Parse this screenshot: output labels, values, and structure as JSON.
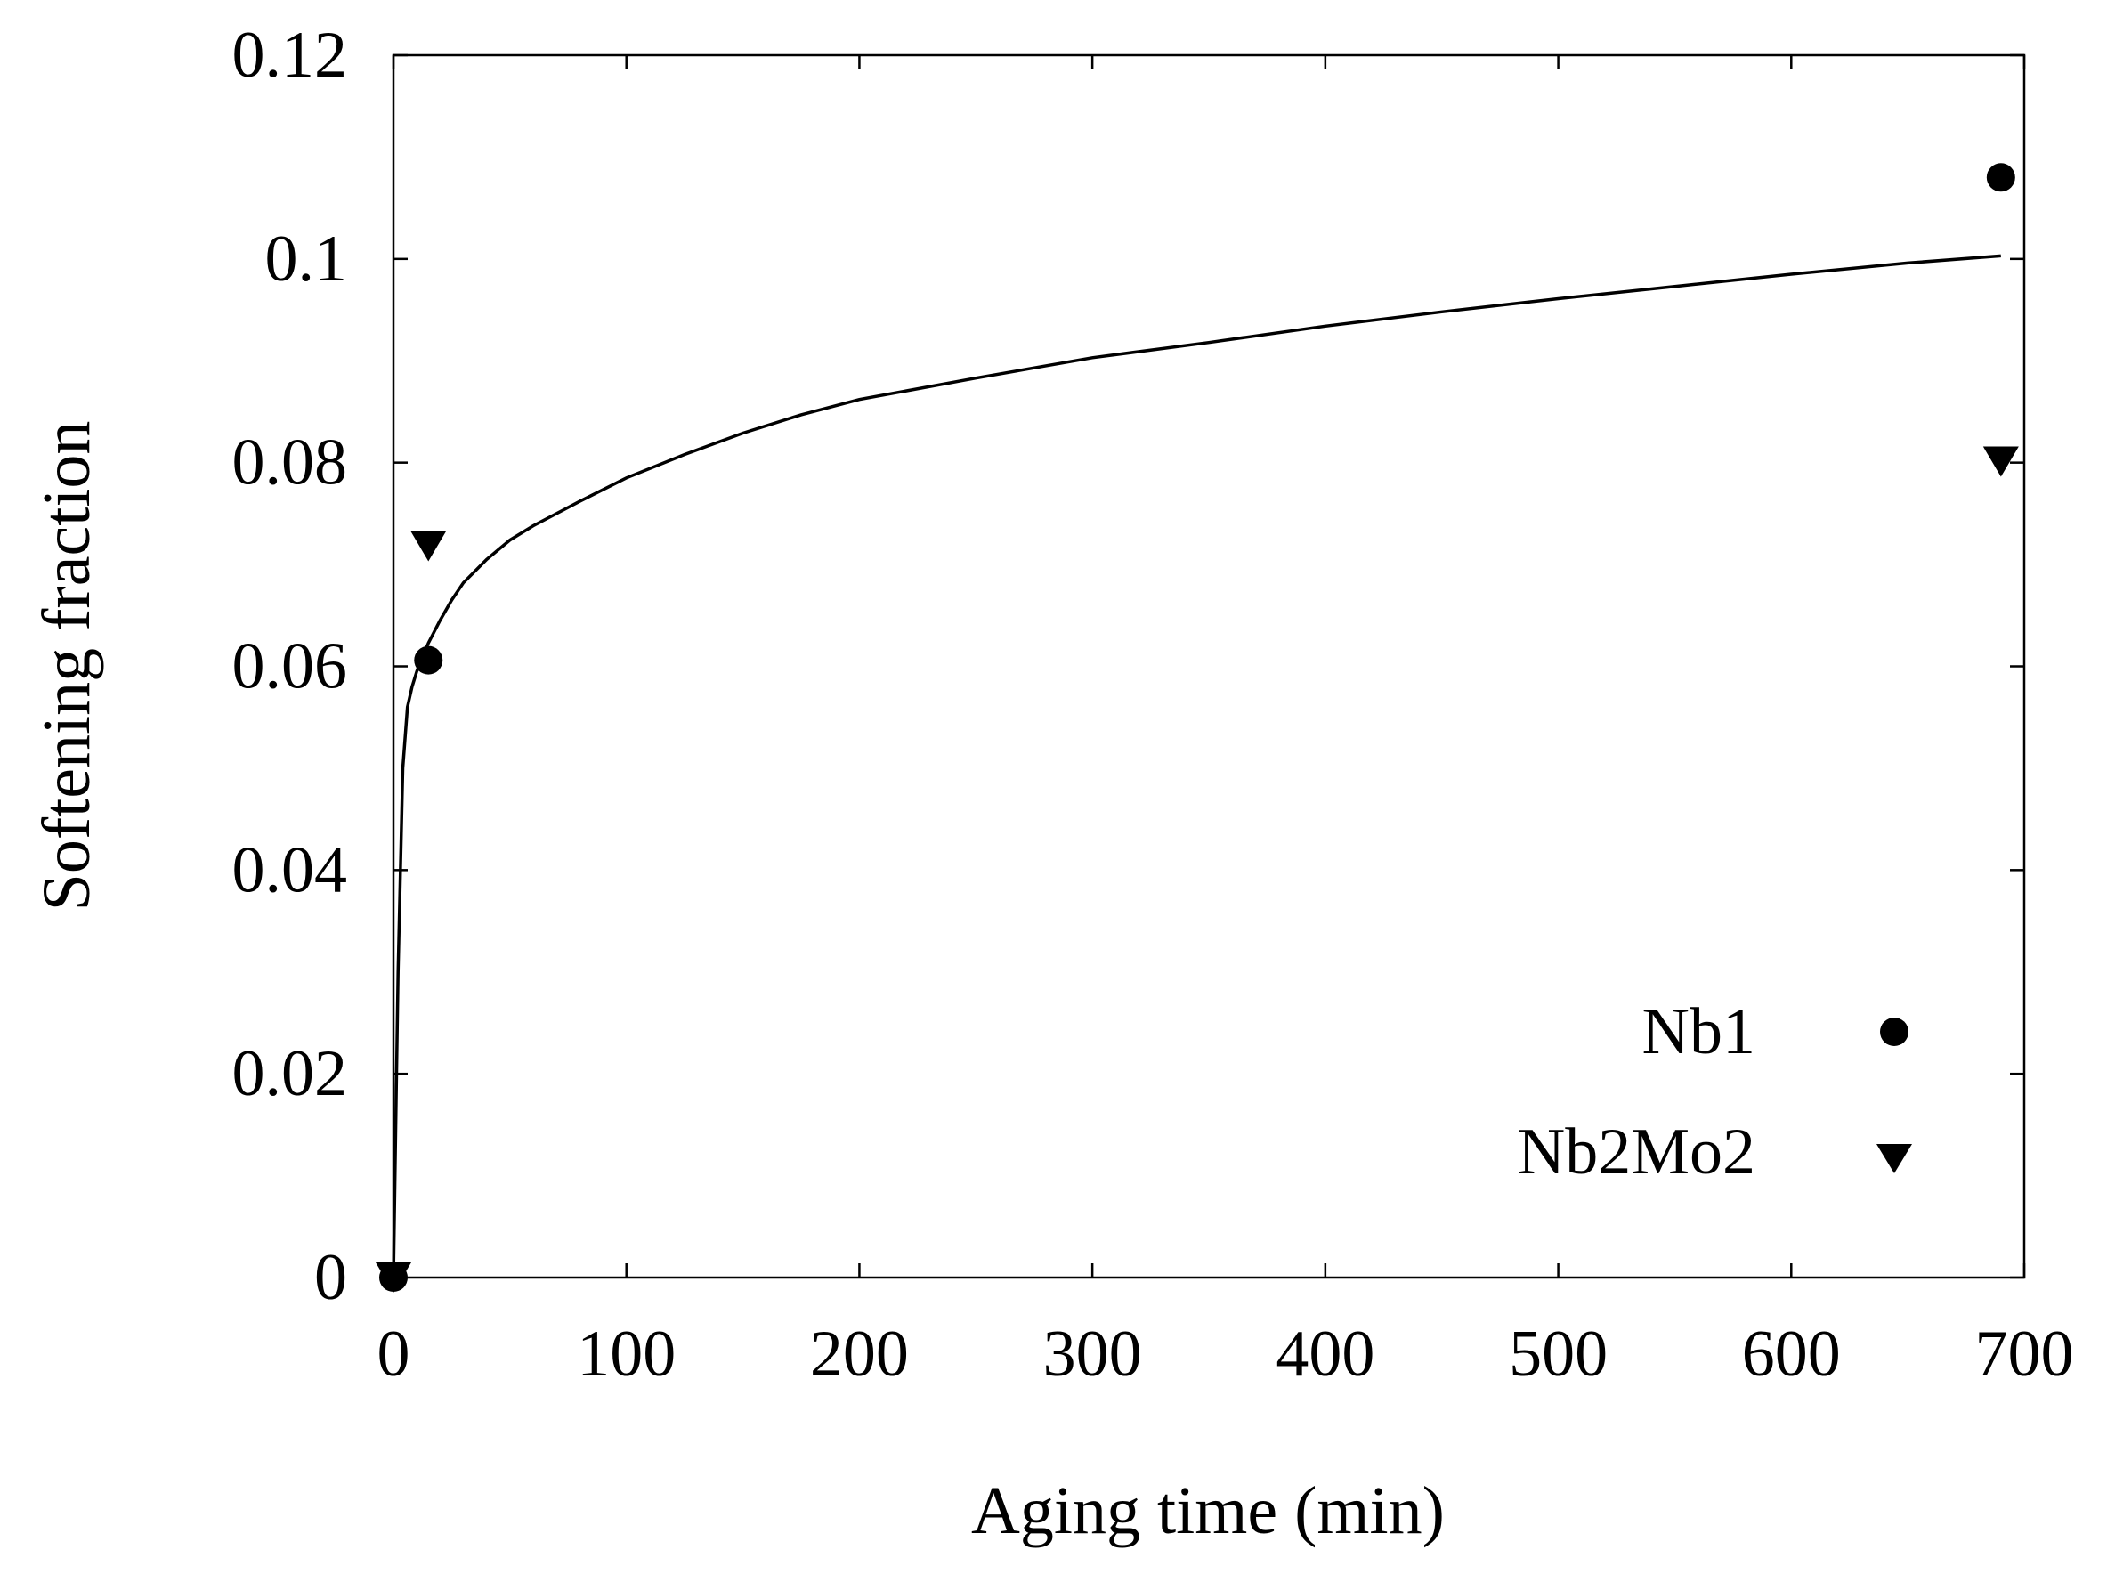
{
  "chart_data": {
    "type": "scatter",
    "title": "",
    "xlabel": "Aging time (min)",
    "ylabel": "Softening fraction",
    "xlim": [
      0,
      700
    ],
    "ylim": [
      0,
      0.12
    ],
    "x_ticks": [
      0,
      100,
      200,
      300,
      400,
      500,
      600,
      700
    ],
    "x_tick_labels": [
      "0",
      "100",
      "200",
      "300",
      "400",
      "500",
      "600",
      "700"
    ],
    "y_ticks": [
      0,
      0.02,
      0.04,
      0.06,
      0.08,
      0.1,
      0.12
    ],
    "y_tick_labels": [
      "0",
      "0.02",
      "0.04",
      "0.06",
      "0.08",
      "0.1",
      "0.12"
    ],
    "grid": false,
    "legend_position": "bottom-right",
    "series": [
      {
        "name": "Nb1",
        "marker": "circle",
        "color": "#000000",
        "x": [
          0,
          15,
          690
        ],
        "y": [
          0,
          0.0606,
          0.108
        ]
      },
      {
        "name": "Nb2Mo2",
        "marker": "triangle-down",
        "color": "#000000",
        "x": [
          0,
          15,
          690
        ],
        "y": [
          0,
          0.0718,
          0.0801
        ]
      }
    ],
    "fit_curve": {
      "name": "fit",
      "color": "#000000",
      "x": [
        0,
        2,
        4,
        6,
        8,
        10,
        12,
        15,
        20,
        25,
        30,
        40,
        50,
        60,
        80,
        100,
        125,
        150,
        175,
        200,
        250,
        300,
        350,
        400,
        450,
        500,
        550,
        600,
        650,
        690
      ],
      "y": [
        0,
        0.03,
        0.05,
        0.056,
        0.058,
        0.0595,
        0.0607,
        0.0623,
        0.0645,
        0.0665,
        0.0682,
        0.0705,
        0.0724,
        0.0738,
        0.0762,
        0.0785,
        0.0808,
        0.0829,
        0.0847,
        0.0862,
        0.0883,
        0.0903,
        0.0918,
        0.0934,
        0.0948,
        0.0961,
        0.0973,
        0.0985,
        0.0996,
        0.1003
      ]
    }
  }
}
